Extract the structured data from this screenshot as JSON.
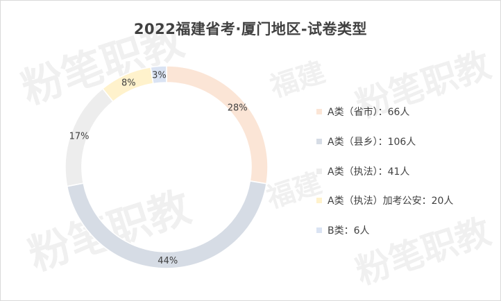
{
  "chart_data": {
    "type": "pie",
    "variant": "donut",
    "title": "2022福建省考·厦门地区-试卷类型",
    "slices": [
      {
        "label": "A类（省市）：66人",
        "value": 66,
        "percent_label": "28%",
        "color": "#FBE5D6"
      },
      {
        "label": "A类（县乡）：106人",
        "value": 106,
        "percent_label": "44%",
        "color": "#D6DCE5"
      },
      {
        "label": "A类（执法）：41人",
        "value": 41,
        "percent_label": "17%",
        "color": "#EDEDED"
      },
      {
        "label": "A类（执法）加考公安：20人",
        "value": 20,
        "percent_label": "8%",
        "color": "#FFF2CC"
      },
      {
        "label": "B类：6人",
        "value": 6,
        "percent_label": "3%",
        "color": "#DAE3F3"
      }
    ],
    "legend_position": "right"
  },
  "watermark": {
    "text_1": "粉笔职教",
    "text_2": "福建"
  }
}
